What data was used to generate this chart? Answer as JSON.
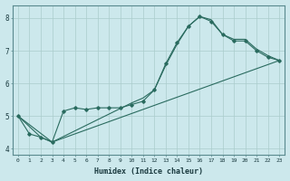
{
  "title": "",
  "xlabel": "Humidex (Indice chaleur)",
  "ylabel": "",
  "bg_color": "#cce8ec",
  "line_color": "#2a6b5f",
  "grid_color": "#aacccc",
  "xlim": [
    -0.5,
    23.5
  ],
  "ylim": [
    3.8,
    8.4
  ],
  "yticks": [
    4,
    5,
    6,
    7,
    8
  ],
  "xticks": [
    0,
    1,
    2,
    3,
    4,
    5,
    6,
    7,
    8,
    9,
    10,
    11,
    12,
    13,
    14,
    15,
    16,
    17,
    18,
    19,
    20,
    21,
    22,
    23
  ],
  "line1_x": [
    0,
    1,
    2,
    3,
    4,
    5,
    6,
    7,
    8,
    9,
    10,
    11,
    12,
    13,
    14,
    15,
    16,
    17,
    18,
    19,
    20,
    21,
    22,
    23
  ],
  "line1_y": [
    5.0,
    4.45,
    4.35,
    4.2,
    5.15,
    5.25,
    5.2,
    5.25,
    5.25,
    5.25,
    5.35,
    5.45,
    5.8,
    6.6,
    7.25,
    7.75,
    8.05,
    7.9,
    7.5,
    7.3,
    7.3,
    7.0,
    6.8,
    6.7
  ],
  "line2_x": [
    0,
    2,
    3,
    10,
    11,
    12,
    13,
    14,
    15,
    16,
    17,
    18,
    19,
    20,
    21,
    22,
    23
  ],
  "line2_y": [
    5.0,
    4.35,
    4.2,
    5.4,
    5.55,
    5.8,
    6.55,
    7.2,
    7.75,
    8.05,
    7.95,
    7.5,
    7.35,
    7.35,
    7.05,
    6.85,
    6.7
  ],
  "line3_x": [
    0,
    3,
    23
  ],
  "line3_y": [
    5.0,
    4.2,
    6.7
  ]
}
